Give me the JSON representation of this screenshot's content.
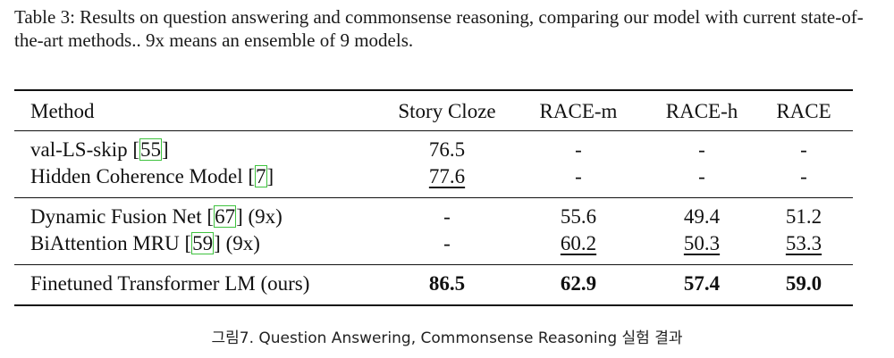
{
  "caption_top": "Table 3: Results on question answering and commonsense reasoning, comparing our model with current state-of-the-art methods.. 9x means an ensemble of 9 models.",
  "table": {
    "headers": [
      "Method",
      "Story Cloze",
      "RACE-m",
      "RACE-h",
      "RACE"
    ],
    "rows": [
      {
        "name": "val-LS-skip [",
        "cite": "55",
        "suffix": "]",
        "values": [
          "76.5",
          "-",
          "-",
          "-"
        ]
      },
      {
        "name": "Hidden Coherence Model [",
        "cite": "7",
        "suffix": "]",
        "values": [
          "77.6",
          "-",
          "-",
          "-"
        ]
      },
      {
        "name": "Dynamic Fusion Net [",
        "cite": "67",
        "suffix": "] (9x)",
        "values": [
          "-",
          "55.6",
          "49.4",
          "51.2"
        ]
      },
      {
        "name": "BiAttention MRU [",
        "cite": "59",
        "suffix": "] (9x)",
        "values": [
          "-",
          "60.2",
          "50.3",
          "53.3"
        ]
      },
      {
        "name": "Finetuned Transformer LM (ours)",
        "cite": "",
        "suffix": "",
        "values": [
          "86.5",
          "62.9",
          "57.4",
          "59.0"
        ]
      }
    ]
  },
  "caption_bottom": "그림7. Question Answering, Commonsense Reasoning 실험 결과"
}
